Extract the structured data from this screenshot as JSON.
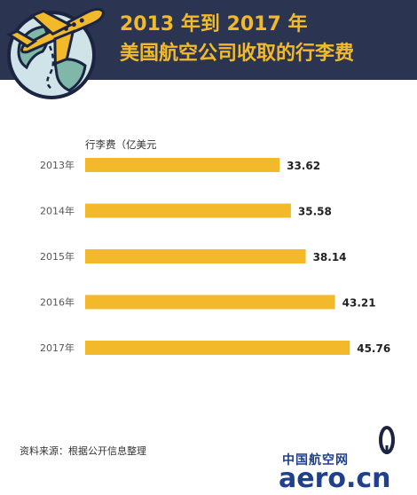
{
  "header": {
    "title_line1": "2013 年到 2017 年",
    "title_line2": "美国航空公司收取的行李费"
  },
  "colors": {
    "header_bg": "#2b3552",
    "accent": "#f2b92a",
    "globe_water": "#cfe3e8",
    "globe_land": "#7fb8a8",
    "bar": "#f2b92a"
  },
  "chart_data": {
    "type": "bar",
    "orientation": "horizontal",
    "unit_label": "行李费（亿美元",
    "categories": [
      "2013年",
      "2014年",
      "2015年",
      "2016年",
      "2017年"
    ],
    "values": [
      33.62,
      35.58,
      38.14,
      43.21,
      45.76
    ],
    "value_labels": [
      "33.62",
      "35.58",
      "38.14",
      "43.21",
      "45.76"
    ],
    "xlim": [
      0,
      53.7
    ]
  },
  "source": "资料来源：根据公开信息整理",
  "watermark": {
    "cn": "中国航空网",
    "url": "aero.cn"
  }
}
